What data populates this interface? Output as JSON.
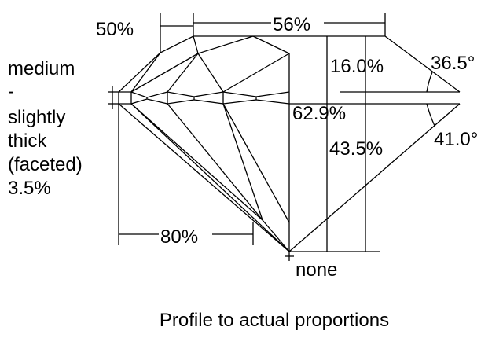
{
  "labels": {
    "crown_angle_girdle_half": "50%",
    "table": "56%",
    "crown_height": "16.0%",
    "crown_angle": "36.5°",
    "total_depth": "62.9%",
    "pavilion_depth": "43.5%",
    "pavilion_angle": "41.0°",
    "lower_half": "80%",
    "culet": "none",
    "girdle": [
      "medium",
      "-",
      "slightly",
      "thick",
      "(faceted)",
      "3.5%"
    ]
  },
  "caption": "Profile to actual proportions"
}
